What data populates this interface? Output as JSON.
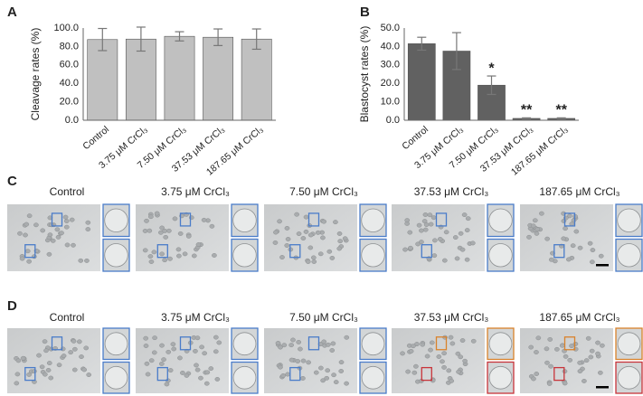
{
  "chart_data": [
    {
      "type": "bar",
      "label": "A",
      "ylabel": "Cleavage rates (%)",
      "categories": [
        "Control",
        "3.75 μM CrCl₃",
        "7.50 μM CrCl₃",
        "37.53 μM CrCl₃",
        "187.65 μM CrCl₃"
      ],
      "values": [
        87.5,
        88,
        91,
        90,
        88
      ],
      "errors": [
        12,
        13,
        5,
        9,
        11
      ],
      "annotations": [
        null,
        null,
        null,
        null,
        null
      ],
      "color": "#c0c0c0",
      "grid": false,
      "ylim": [
        0,
        100
      ],
      "yticks": [
        {
          "value": 0,
          "label": "0.0"
        },
        {
          "value": 20,
          "label": "20.0"
        },
        {
          "value": 40,
          "label": "40.0"
        },
        {
          "value": 60,
          "label": "60.0"
        },
        {
          "value": 80,
          "label": "80.0"
        },
        {
          "value": 100,
          "label": "100.0"
        }
      ]
    },
    {
      "type": "bar",
      "label": "B",
      "ylabel": "Blastocyst rates (%)",
      "categories": [
        "Control",
        "3.75 μM CrCl₃",
        "7.50 μM  CrCl₃",
        "37.53 μM CrCl₃",
        "187.65 μM CrCl₃"
      ],
      "values": [
        41.5,
        37.5,
        19,
        1,
        1
      ],
      "errors": [
        3.5,
        10,
        5,
        0.3,
        0.3
      ],
      "annotations": [
        null,
        null,
        "*",
        "**",
        "**"
      ],
      "color": "#616161",
      "grid": false,
      "ylim": [
        0,
        50
      ],
      "yticks": [
        {
          "value": 0,
          "label": "0.0"
        },
        {
          "value": 10,
          "label": "10.0"
        },
        {
          "value": 20,
          "label": "20.0"
        },
        {
          "value": 30,
          "label": "30.0"
        },
        {
          "value": 40,
          "label": "40.0"
        },
        {
          "value": 50,
          "label": "50.0"
        }
      ]
    }
  ],
  "image_panels": [
    {
      "label": "C",
      "titles": [
        "Control",
        "3.75 μM CrCl₃",
        "7.50 μM CrCl₃",
        "37.53 μM CrCl₃",
        "187.65 μM CrCl₃"
      ]
    },
    {
      "label": "D",
      "titles": [
        "Control",
        "3.75 μM CrCl₃",
        "7.50 μM CrCl₃",
        "37.53 μM CrCl₃",
        "187.65 μM CrCl₃"
      ]
    }
  ]
}
